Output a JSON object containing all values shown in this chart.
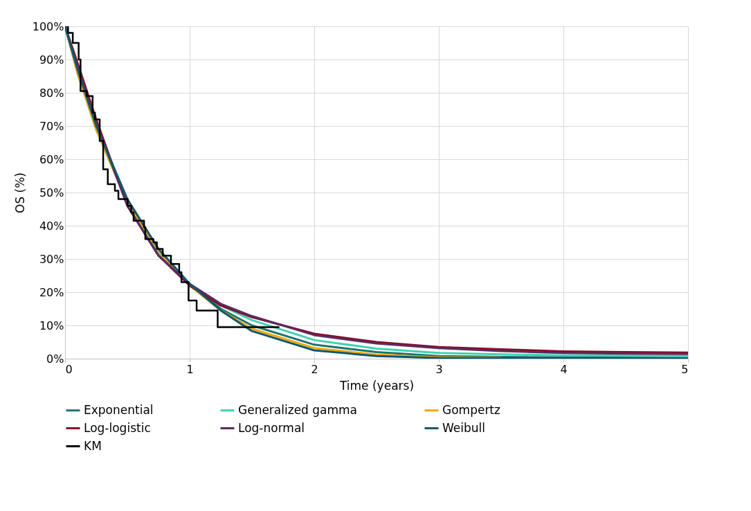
{
  "chart_data": {
    "type": "line",
    "xlabel": "Time (years)",
    "ylabel": "OS (%)",
    "xlim": [
      0,
      5
    ],
    "xticks": [
      0,
      1,
      2,
      3,
      4,
      5
    ],
    "ylim": [
      0,
      100
    ],
    "yticks": [
      {
        "value": 0,
        "label": "0%"
      },
      {
        "value": 10,
        "label": "10%"
      },
      {
        "value": 20,
        "label": "20%"
      },
      {
        "value": 30,
        "label": "30%"
      },
      {
        "value": 40,
        "label": "40%"
      },
      {
        "value": 50,
        "label": "50%"
      },
      {
        "value": 60,
        "label": "60%"
      },
      {
        "value": 70,
        "label": "70%"
      },
      {
        "value": 80,
        "label": "80%"
      },
      {
        "value": 90,
        "label": "90%"
      },
      {
        "value": 100,
        "label": "100%"
      }
    ],
    "grid": true,
    "legend": "bottom",
    "line_style": "solid",
    "x": [
      0,
      0.1,
      0.25,
      0.5,
      0.75,
      1,
      1.25,
      1.5,
      2,
      2.5,
      3,
      3.5,
      4,
      4.5,
      5
    ],
    "series": [
      {
        "name": "Exponential",
        "color": "#1b7370",
        "values": [
          100,
          86,
          69,
          47,
          32.5,
          22.3,
          15,
          10,
          4.2,
          2,
          0.8,
          0.5,
          0.4,
          0.3,
          0.2
        ]
      },
      {
        "name": "Generalized gamma",
        "color": "#3fd2b0",
        "values": [
          null,
          null,
          null,
          47,
          32,
          22.5,
          16,
          11.6,
          5.6,
          3,
          1.7,
          1.3,
          1,
          0.9,
          0.8
        ]
      },
      {
        "name": "Gompertz",
        "color": "#f0a800",
        "values": [
          100,
          86,
          69,
          47,
          32.5,
          22,
          14.5,
          9,
          3.2,
          1.2,
          0.4,
          0.2,
          null,
          null,
          null
        ]
      },
      {
        "name": "Log-logistic",
        "color": "#8b0a22",
        "values": [
          100,
          89,
          72,
          46,
          31,
          22,
          16,
          12.5,
          7.5,
          5,
          3.5,
          2.8,
          2.2,
          2,
          1.8
        ]
      },
      {
        "name": "Log-normal",
        "color": "#5c2a60",
        "values": [
          100,
          88,
          71,
          46,
          31,
          22.5,
          16.5,
          12.8,
          7.1,
          4.6,
          3.2,
          2.3,
          1.7,
          1.5,
          1.4
        ]
      },
      {
        "name": "Weibull",
        "color": "#0e5870",
        "values": [
          100,
          87,
          70,
          48,
          33,
          22.5,
          14.5,
          8.3,
          2.5,
          0.8,
          0.2,
          0.1,
          0.1,
          0.1,
          0.1
        ]
      },
      {
        "name": "KM",
        "color": "#000000",
        "type": "step",
        "x": [
          0,
          0.024,
          0.062,
          0.109,
          0.124,
          0.174,
          0.221,
          0.24,
          0.278,
          0.306,
          0.343,
          0.4,
          0.428,
          0.503,
          0.531,
          0.55,
          0.634,
          0.644,
          0.709,
          0.737,
          0.784,
          0.85,
          0.916,
          0.934,
          0.991,
          1.056,
          1.225,
          1.72
        ],
        "values": [
          100,
          98,
          95,
          90,
          80.5,
          79,
          74,
          72,
          65.5,
          57,
          52.5,
          50.5,
          48,
          46,
          44,
          41.5,
          39.5,
          36,
          35,
          33,
          31,
          28.5,
          26,
          23,
          17.5,
          14.5,
          9.5,
          9.5
        ]
      }
    ]
  }
}
